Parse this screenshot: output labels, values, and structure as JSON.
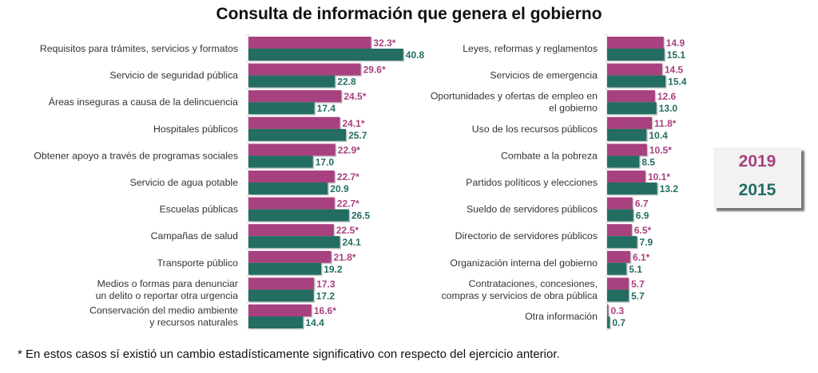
{
  "chart_data": [
    {
      "type": "bar",
      "orientation": "horizontal",
      "title": "Consulta de información que genera el gobierno",
      "xlabel": "",
      "ylabel": "",
      "xlim": [
        0,
        45
      ],
      "grid": false,
      "legend_position": "right",
      "series_names": [
        "2019",
        "2015"
      ],
      "categories": [
        "Requisitos para trámites, servicios y formatos",
        "Servicio de seguridad pública",
        "Áreas inseguras a causa de la delincuencia",
        "Hospitales públicos",
        "Obtener apoyo a través de programas sociales",
        "Servicio de agua potable",
        "Escuelas públicas",
        "Campañas de salud",
        "Transporte público",
        "Medios o formas para denunciar un delito o reportar otra urgencia",
        "Conservación del medio ambiente y recursos naturales"
      ],
      "category_lines": [
        [
          "Requisitos para trámites, servicios y formatos"
        ],
        [
          "Servicio de seguridad pública"
        ],
        [
          "Áreas inseguras a causa de la delincuencia"
        ],
        [
          "Hospitales públicos"
        ],
        [
          "Obtener apoyo a través de programas sociales"
        ],
        [
          "Servicio de agua potable"
        ],
        [
          "Escuelas públicas"
        ],
        [
          "Campañas de salud"
        ],
        [
          "Transporte público"
        ],
        [
          "Medios o formas para denunciar",
          "un delito o reportar otra urgencia"
        ],
        [
          "Conservación del medio ambiente",
          "y recursos naturales"
        ]
      ],
      "series": [
        {
          "name": "2019",
          "values": [
            32.3,
            29.6,
            24.5,
            24.1,
            22.9,
            22.7,
            22.7,
            22.5,
            21.8,
            17.3,
            16.6
          ],
          "labels": [
            "32.3*",
            "29.6*",
            "24.5*",
            "24.1*",
            "22.9*",
            "22.7*",
            "22.7*",
            "22.5*",
            "21.8*",
            "17.3",
            "16.6*"
          ]
        },
        {
          "name": "2015",
          "values": [
            40.8,
            22.8,
            17.4,
            25.7,
            17.0,
            20.9,
            26.5,
            24.1,
            19.2,
            17.2,
            14.4
          ],
          "labels": [
            "40.8",
            "22.8",
            "17.4",
            "25.7",
            "17.0",
            "20.9",
            "26.5",
            "24.1",
            "19.2",
            "17.2",
            "14.4"
          ]
        }
      ]
    },
    {
      "type": "bar",
      "orientation": "horizontal",
      "title": "",
      "xlabel": "",
      "ylabel": "",
      "xlim": [
        0,
        45
      ],
      "grid": false,
      "series_names": [
        "2019",
        "2015"
      ],
      "categories": [
        "Leyes, reformas y reglamentos",
        "Servicios de emergencia",
        "Oportunidades y ofertas de empleo en el gobierno",
        "Uso de los recursos públicos",
        "Combate a la pobreza",
        "Partidos políticos y elecciones",
        "Sueldo de servidores públicos",
        "Directorio de servidores públicos",
        "Organización interna del gobierno",
        "Contrataciones, concesiones, compras y servicios de obra pública",
        "Otra información"
      ],
      "category_lines": [
        [
          "Leyes, reformas y reglamentos"
        ],
        [
          "Servicios de emergencia"
        ],
        [
          "Oportunidades y ofertas de empleo en",
          "el gobierno"
        ],
        [
          "Uso de los recursos públicos"
        ],
        [
          "Combate a la pobreza"
        ],
        [
          "Partidos políticos y elecciones"
        ],
        [
          "Sueldo de servidores públicos"
        ],
        [
          "Directorio de servidores públicos"
        ],
        [
          "Organización interna del gobierno"
        ],
        [
          "Contrataciones, concesiones,",
          "compras y servicios de obra pública"
        ],
        [
          "Otra información"
        ]
      ],
      "series": [
        {
          "name": "2019",
          "values": [
            14.9,
            14.5,
            12.6,
            11.8,
            10.5,
            10.1,
            6.7,
            6.5,
            6.1,
            5.7,
            0.3
          ],
          "labels": [
            "14.9",
            "14.5",
            "12.6",
            "11.8*",
            "10.5*",
            "10.1*",
            "6.7",
            "6.5*",
            "6.1*",
            "5.7",
            "0.3"
          ]
        },
        {
          "name": "2015",
          "values": [
            15.1,
            15.4,
            13.0,
            10.4,
            8.5,
            13.2,
            6.9,
            7.9,
            5.1,
            5.7,
            0.7
          ],
          "labels": [
            "15.1",
            "15.4",
            "13.0",
            "10.4",
            "8.5",
            "13.2",
            "6.9",
            "7.9",
            "5.1",
            "5.7",
            "0.7"
          ]
        }
      ]
    }
  ],
  "title": "Consulta de información que genera el gobierno",
  "legend": {
    "items": [
      {
        "label": "2019",
        "color": "#a8417f"
      },
      {
        "label": "2015",
        "color": "#236d62"
      }
    ]
  },
  "colors": {
    "series_2019": "#a8417f",
    "series_2015": "#236d62"
  },
  "footnote": "* En estos casos sí existió un cambio estadísticamente significativo con respecto del ejercicio anterior."
}
